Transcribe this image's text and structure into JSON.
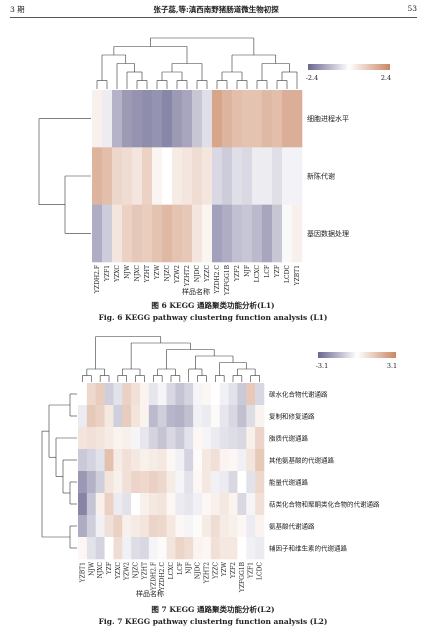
{
  "header": {
    "issue": "3 期",
    "title": "张子蕊,等:滇西南野猪肠道微生物初探",
    "page": "53"
  },
  "fig6": {
    "caption_cn": "图 6   KEGG 通路聚类功能分析(L1)",
    "caption_en": "Fig. 6   KEGG pathway clustering function analysis (L1)",
    "x_axis_label": "样品名称",
    "scale_min": "-2.4",
    "scale_max": "2.4",
    "colors": {
      "low": "#6a6790",
      "mid": "#ffffff",
      "high": "#c98763"
    }
  },
  "fig7": {
    "caption_cn": "图 7   KEGG 通路聚类功能分析(L2)",
    "caption_en": "Fig. 7   KEGG pathway clustering function analysis (L2)",
    "x_axis_label": "样品名称",
    "scale_min": "-3.1",
    "scale_max": "3.1",
    "colors": {
      "low": "#6a6790",
      "mid": "#ffffff",
      "high": "#c98763"
    }
  },
  "chart_data": [
    {
      "type": "heatmap",
      "title": "",
      "xlabel": "样品名称",
      "ylabel": "",
      "x": [
        "YZDH2.F",
        "YZF1",
        "YZXC",
        "NJW",
        "NJXC",
        "YZHT",
        "YZW",
        "NJZC",
        "YZW2",
        "YZHT2",
        "NJDC",
        "YZZC",
        "YZDH2.C",
        "YZFGG1B",
        "YZF2",
        "NJF",
        "LCXC",
        "LCF",
        "YZF",
        "LCDC",
        "YZBT1"
      ],
      "y": [
        "细胞进程水平",
        "新陈代谢",
        "基因数据处理"
      ],
      "values": [
        [
          0.3,
          -0.3,
          -1.2,
          -1.6,
          -1.7,
          -1.8,
          -1.7,
          -1.9,
          -1.6,
          -1.4,
          -0.9,
          -0.5,
          1.8,
          1.5,
          1.3,
          1.2,
          1.2,
          1.4,
          1.3,
          1.6,
          1.6
        ],
        [
          1.5,
          1.3,
          0.8,
          0.7,
          0.5,
          0.9,
          0.2,
          0.0,
          0.4,
          0.5,
          0.7,
          0.5,
          -0.6,
          -0.8,
          -0.5,
          -0.6,
          -0.3,
          -0.3,
          -0.5,
          -0.2,
          -0.2
        ],
        [
          -1.3,
          -0.8,
          0.5,
          0.9,
          1.1,
          1.0,
          1.2,
          1.4,
          1.2,
          1.1,
          0.5,
          0.2,
          -1.5,
          -1.3,
          -1.0,
          -0.9,
          -1.1,
          -1.4,
          -0.9,
          -0.1,
          0.3
        ]
      ],
      "range": [
        -2.4,
        2.4
      ]
    },
    {
      "type": "heatmap",
      "title": "",
      "xlabel": "样品名称",
      "ylabel": "",
      "x": [
        "YZBT1",
        "NJW",
        "NJXC",
        "YZF",
        "YZXC",
        "YZW2",
        "NJZC",
        "YZHT",
        "YZDH2.F",
        "YZDH2.C",
        "LCXC",
        "LCF",
        "NJF",
        "NJDC",
        "YZHT2",
        "YZZC",
        "YZW",
        "YZF2",
        "YZFGG1B",
        "YZF1",
        "LCDC"
      ],
      "y": [
        "碳水化合物代谢通路",
        "复制和修复通路",
        "脂质代谢通路",
        "其他氨基酸的代谢通路",
        "能量代谢通路",
        "萜类化合物和聚酮类化合物的代谢通路",
        "氨基酸代谢通路",
        "辅因子和维生素的代谢通路"
      ],
      "values": [
        [
          0.0,
          1.0,
          1.3,
          -1.0,
          -0.6,
          1.2,
          0.8,
          0.3,
          -0.5,
          -0.2,
          -0.8,
          -1.2,
          -0.9,
          -0.2,
          0.2,
          0.0,
          -0.3,
          -0.6,
          -1.1,
          1.4,
          -0.8
        ],
        [
          -0.4,
          1.4,
          1.2,
          0.6,
          -1.0,
          1.3,
          0.7,
          0.3,
          -1.4,
          -1.0,
          -1.5,
          -1.6,
          -1.3,
          -0.3,
          -0.4,
          0.1,
          -0.5,
          -0.8,
          -1.3,
          -0.7,
          0.3
        ],
        [
          0.7,
          0.8,
          0.7,
          0.5,
          0.3,
          0.4,
          -0.2,
          -0.5,
          -0.9,
          -1.2,
          -0.8,
          -1.1,
          -0.6,
          0.2,
          -0.2,
          -0.4,
          -0.6,
          -0.7,
          -0.8,
          0.4,
          1.1
        ],
        [
          -1.1,
          -0.9,
          -0.6,
          1.6,
          0.5,
          0.8,
          0.6,
          0.4,
          0.5,
          0.6,
          0.2,
          -0.3,
          -0.9,
          0.1,
          0.6,
          0.8,
          0.3,
          0.2,
          -0.3,
          0.7,
          1.4
        ],
        [
          -2.1,
          -1.6,
          -1.0,
          0.7,
          0.4,
          0.8,
          1.1,
          1.0,
          1.2,
          1.0,
          0.5,
          -0.2,
          -0.6,
          0.2,
          0.6,
          -0.3,
          -0.4,
          -0.8,
          0.0,
          -0.6,
          1.0
        ],
        [
          -2.5,
          -1.2,
          0.4,
          1.2,
          -0.4,
          -0.6,
          0.0,
          0.4,
          0.6,
          0.7,
          0.2,
          -0.4,
          -0.5,
          -0.3,
          0.2,
          0.4,
          0.6,
          0.3,
          -0.8,
          -0.2,
          0.8
        ],
        [
          -1.7,
          -1.0,
          -0.3,
          0.8,
          1.2,
          0.4,
          0.5,
          0.7,
          1.1,
          1.0,
          0.6,
          0.2,
          -0.2,
          0.1,
          0.5,
          0.9,
          0.5,
          0.4,
          0.2,
          -0.4,
          0.3
        ],
        [
          0.2,
          -0.6,
          -0.9,
          0.0,
          0.9,
          -0.3,
          -0.7,
          -0.8,
          -0.2,
          0.1,
          0.7,
          1.1,
          0.9,
          0.3,
          0.2,
          0.8,
          0.6,
          0.6,
          0.0,
          -0.3,
          -0.4
        ]
      ],
      "range": [
        -3.1,
        3.1
      ]
    }
  ]
}
